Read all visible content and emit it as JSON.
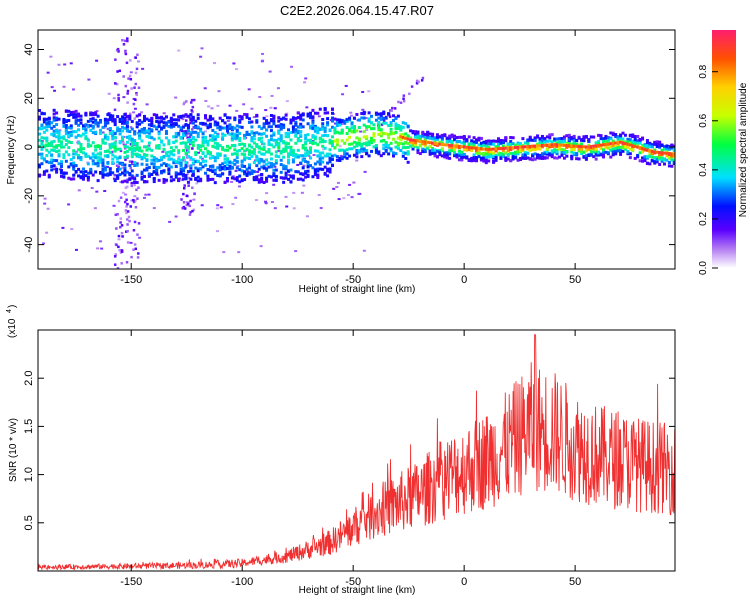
{
  "title": "C2E2.2026.064.15.47.R07",
  "chart_data": [
    {
      "type": "heatmap",
      "xlabel": "Height of straight line (km)",
      "ylabel": "Frequency (Hz)",
      "xlim": [
        -192,
        95
      ],
      "ylim": [
        -50,
        48
      ],
      "xticks": [
        -150,
        -100,
        -50,
        0,
        50
      ],
      "yticks": [
        -40,
        -20,
        0,
        20,
        40
      ],
      "colorbar": {
        "label": "Normalized spectral amplitude",
        "range": [
          0,
          0.97
        ],
        "ticks": [
          "0.0",
          "0.2",
          "0.4",
          "0.6",
          "0.8"
        ],
        "tick_values": [
          0,
          0.2,
          0.4,
          0.6,
          0.8
        ],
        "colors": [
          "#ffffff",
          "#b37cf2",
          "#5a00ff",
          "#0010ff",
          "#00e0ff",
          "#00ff40",
          "#c8ff00",
          "#ffd000",
          "#ff5000",
          "#ff1e6e"
        ]
      },
      "ridge_center_hz": [
        {
          "x": -190,
          "y": 2
        },
        {
          "x": -150,
          "y": 0
        },
        {
          "x": -100,
          "y": 0
        },
        {
          "x": -80,
          "y": 0
        },
        {
          "x": -60,
          "y": 3
        },
        {
          "x": -45,
          "y": 6
        },
        {
          "x": -35,
          "y": 6
        },
        {
          "x": -25,
          "y": 3
        },
        {
          "x": -10,
          "y": 1
        },
        {
          "x": 0,
          "y": 0
        },
        {
          "x": 10,
          "y": -1
        },
        {
          "x": 25,
          "y": 0
        },
        {
          "x": 40,
          "y": 1
        },
        {
          "x": 55,
          "y": 0
        },
        {
          "x": 70,
          "y": 2
        },
        {
          "x": 85,
          "y": -2
        },
        {
          "x": 95,
          "y": -3
        }
      ]
    },
    {
      "type": "line",
      "xlabel": "Height of straight line (km)",
      "ylabel": "SNR (10 * v/v)",
      "yscale_label": "(x10",
      "yscale_exp": "4",
      "xlim": [
        -192,
        95
      ],
      "ylim": [
        0,
        2.5
      ],
      "xticks": [
        -150,
        -100,
        -50,
        0,
        50
      ],
      "yticks": [
        0.5,
        1.0,
        1.5,
        2.0
      ],
      "ytick_labels": [
        "0.5",
        "1.0",
        "1.5",
        "2.0"
      ],
      "series": [
        {
          "name": "SNR",
          "color": "#f03030",
          "x": [
            -192,
            -150,
            -120,
            -100,
            -80,
            -60,
            -50,
            -40,
            -30,
            -20,
            -10,
            0,
            10,
            20,
            30,
            40,
            50,
            60,
            70,
            80,
            95
          ],
          "values": [
            0.04,
            0.05,
            0.06,
            0.08,
            0.15,
            0.3,
            0.45,
            0.6,
            0.7,
            0.8,
            0.95,
            1.05,
            1.15,
            1.3,
            1.5,
            1.45,
            1.3,
            1.2,
            1.15,
            1.1,
            1.05
          ],
          "peak": {
            "x": 32,
            "y": 2.45
          }
        }
      ]
    }
  ]
}
